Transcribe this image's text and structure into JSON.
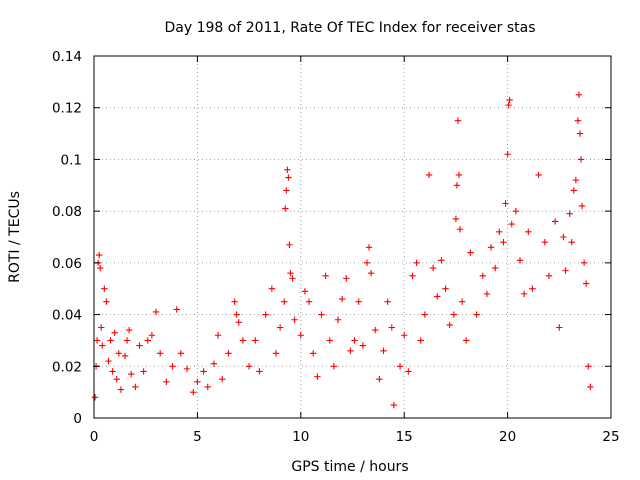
{
  "chart_data": {
    "type": "scatter",
    "title": "Day 198 of 2011, Rate Of TEC Index for receiver stas",
    "xlabel": "GPS time / hours",
    "ylabel": "ROTI / TECUs",
    "xlim": [
      0,
      25
    ],
    "ylim": [
      0,
      0.14
    ],
    "x_ticks": [
      0,
      5,
      10,
      15,
      20,
      25
    ],
    "x_tick_labels": [
      "0",
      "5",
      "10",
      "15",
      "20",
      "25"
    ],
    "y_ticks": [
      0,
      0.02,
      0.04,
      0.06,
      0.08,
      0.1,
      0.12,
      0.14
    ],
    "y_tick_labels": [
      "0",
      "0.02",
      "0.04",
      "0.06",
      "0.08",
      "0.1",
      "0.12",
      "0.14"
    ],
    "grid": true,
    "marker": "plus",
    "color": "#ff0000",
    "series": [
      {
        "points": [
          [
            0.05,
            0.008
          ],
          [
            0.1,
            0.02
          ],
          [
            0.15,
            0.03
          ],
          [
            0.2,
            0.06
          ],
          [
            0.25,
            0.063
          ],
          [
            0.3,
            0.058
          ],
          [
            0.35,
            0.035
          ],
          [
            0.4,
            0.028
          ],
          [
            0.5,
            0.05
          ],
          [
            0.6,
            0.045
          ],
          [
            0.7,
            0.022
          ],
          [
            0.8,
            0.03
          ],
          [
            0.9,
            0.018
          ],
          [
            1.0,
            0.033
          ],
          [
            1.1,
            0.015
          ],
          [
            1.2,
            0.025
          ],
          [
            1.3,
            0.011
          ],
          [
            1.5,
            0.024
          ],
          [
            1.6,
            0.03
          ],
          [
            1.7,
            0.034
          ],
          [
            1.8,
            0.017
          ],
          [
            2.0,
            0.012
          ],
          [
            2.2,
            0.028
          ],
          [
            2.4,
            0.018
          ],
          [
            2.6,
            0.03
          ],
          [
            2.8,
            0.032
          ],
          [
            3.0,
            0.041
          ],
          [
            3.2,
            0.025
          ],
          [
            3.5,
            0.014
          ],
          [
            3.8,
            0.02
          ],
          [
            4.0,
            0.042
          ],
          [
            4.2,
            0.025
          ],
          [
            4.5,
            0.019
          ],
          [
            4.8,
            0.01
          ],
          [
            5.0,
            0.014
          ],
          [
            5.3,
            0.018
          ],
          [
            5.5,
            0.012
          ],
          [
            5.8,
            0.021
          ],
          [
            6.0,
            0.032
          ],
          [
            6.2,
            0.015
          ],
          [
            6.5,
            0.025
          ],
          [
            6.8,
            0.045
          ],
          [
            6.9,
            0.04
          ],
          [
            7.0,
            0.037
          ],
          [
            7.2,
            0.03
          ],
          [
            7.5,
            0.02
          ],
          [
            7.8,
            0.03
          ],
          [
            8.0,
            0.018
          ],
          [
            8.3,
            0.04
          ],
          [
            8.6,
            0.05
          ],
          [
            8.8,
            0.025
          ],
          [
            9.0,
            0.035
          ],
          [
            9.2,
            0.045
          ],
          [
            9.25,
            0.081
          ],
          [
            9.3,
            0.088
          ],
          [
            9.35,
            0.096
          ],
          [
            9.4,
            0.093
          ],
          [
            9.45,
            0.067
          ],
          [
            9.5,
            0.056
          ],
          [
            9.6,
            0.054
          ],
          [
            9.7,
            0.038
          ],
          [
            10.0,
            0.032
          ],
          [
            10.2,
            0.049
          ],
          [
            10.4,
            0.045
          ],
          [
            10.6,
            0.025
          ],
          [
            10.8,
            0.016
          ],
          [
            11.0,
            0.04
          ],
          [
            11.2,
            0.055
          ],
          [
            11.4,
            0.03
          ],
          [
            11.6,
            0.02
          ],
          [
            11.8,
            0.038
          ],
          [
            12.0,
            0.046
          ],
          [
            12.2,
            0.054
          ],
          [
            12.4,
            0.026
          ],
          [
            12.6,
            0.03
          ],
          [
            12.8,
            0.045
          ],
          [
            13.0,
            0.028
          ],
          [
            13.2,
            0.06
          ],
          [
            13.3,
            0.066
          ],
          [
            13.4,
            0.056
          ],
          [
            13.6,
            0.034
          ],
          [
            13.8,
            0.015
          ],
          [
            14.0,
            0.026
          ],
          [
            14.2,
            0.045
          ],
          [
            14.4,
            0.035
          ],
          [
            14.5,
            0.005
          ],
          [
            14.8,
            0.02
          ],
          [
            15.0,
            0.032
          ],
          [
            15.2,
            0.018
          ],
          [
            15.4,
            0.055
          ],
          [
            15.6,
            0.06
          ],
          [
            15.8,
            0.03
          ],
          [
            16.0,
            0.04
          ],
          [
            16.2,
            0.094
          ],
          [
            16.4,
            0.058
          ],
          [
            16.6,
            0.047
          ],
          [
            16.8,
            0.061
          ],
          [
            17.0,
            0.05
          ],
          [
            17.2,
            0.036
          ],
          [
            17.4,
            0.04
          ],
          [
            17.5,
            0.077
          ],
          [
            17.55,
            0.09
          ],
          [
            17.6,
            0.115
          ],
          [
            17.65,
            0.094
          ],
          [
            17.7,
            0.073
          ],
          [
            17.8,
            0.045
          ],
          [
            18.0,
            0.03
          ],
          [
            18.2,
            0.064
          ],
          [
            18.5,
            0.04
          ],
          [
            18.8,
            0.055
          ],
          [
            19.0,
            0.048
          ],
          [
            19.2,
            0.066
          ],
          [
            19.4,
            0.058
          ],
          [
            19.6,
            0.072
          ],
          [
            19.8,
            0.068
          ],
          [
            19.9,
            0.083
          ],
          [
            20.0,
            0.102
          ],
          [
            20.05,
            0.121
          ],
          [
            20.1,
            0.123
          ],
          [
            20.2,
            0.075
          ],
          [
            20.4,
            0.08
          ],
          [
            20.6,
            0.061
          ],
          [
            20.8,
            0.048
          ],
          [
            21.0,
            0.072
          ],
          [
            21.2,
            0.05
          ],
          [
            21.5,
            0.094
          ],
          [
            21.8,
            0.068
          ],
          [
            22.0,
            0.055
          ],
          [
            22.3,
            0.076
          ],
          [
            22.5,
            0.035
          ],
          [
            22.7,
            0.07
          ],
          [
            22.8,
            0.057
          ],
          [
            23.0,
            0.079
          ],
          [
            23.1,
            0.068
          ],
          [
            23.2,
            0.088
          ],
          [
            23.3,
            0.092
          ],
          [
            23.4,
            0.115
          ],
          [
            23.45,
            0.125
          ],
          [
            23.5,
            0.11
          ],
          [
            23.55,
            0.1
          ],
          [
            23.6,
            0.082
          ],
          [
            23.7,
            0.06
          ],
          [
            23.8,
            0.052
          ],
          [
            23.9,
            0.02
          ],
          [
            24.0,
            0.012
          ]
        ]
      }
    ]
  }
}
